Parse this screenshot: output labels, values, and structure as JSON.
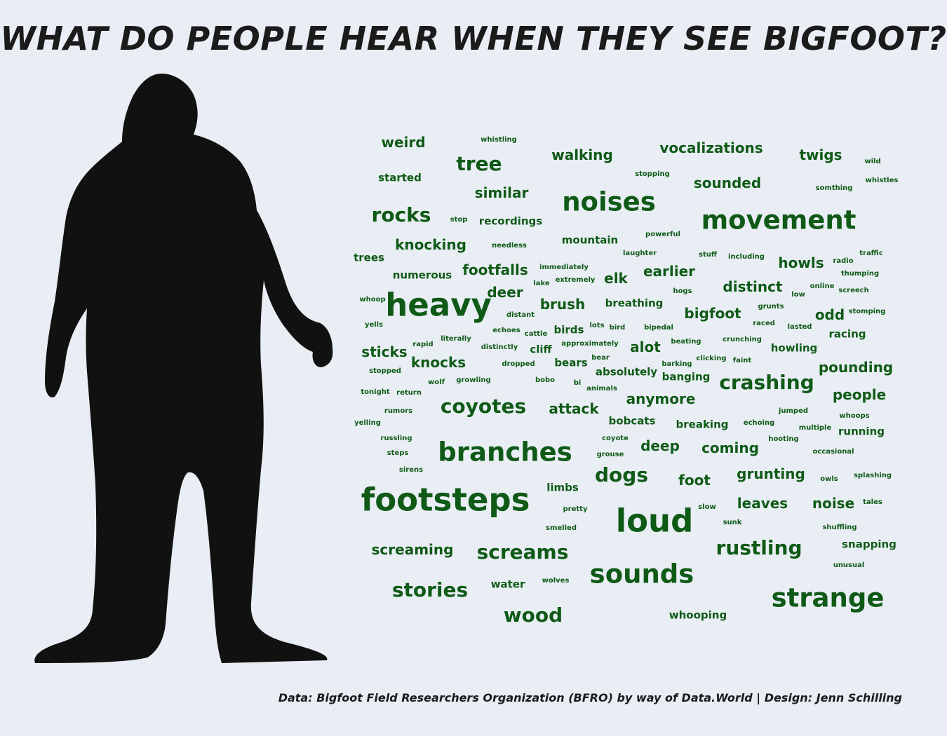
{
  "title": "WHAT DO PEOPLE HEAR WHEN THEY SEE BIGFOOT?",
  "caption": "Data: Bigfoot Field Researchers Organization (BFRO) by way of Data.World | Design: Jenn Schilling",
  "colors": {
    "background": "#e9eef4",
    "word": "#0f5a16",
    "silhouette": "#111111",
    "title": "#1b1b1b"
  },
  "silhouette": {
    "icon": "bigfoot-silhouette-icon"
  },
  "words": [
    {
      "text": "weird",
      "weight": 3
    },
    {
      "text": "whistling",
      "weight": 1
    },
    {
      "text": "walking",
      "weight": 3
    },
    {
      "text": "vocalizations",
      "weight": 3
    },
    {
      "text": "twigs",
      "weight": 3
    },
    {
      "text": "wild",
      "weight": 1
    },
    {
      "text": "tree",
      "weight": 4
    },
    {
      "text": "started",
      "weight": 2
    },
    {
      "text": "stopping",
      "weight": 1
    },
    {
      "text": "sounded",
      "weight": 3
    },
    {
      "text": "whistles",
      "weight": 1
    },
    {
      "text": "somthing",
      "weight": 1
    },
    {
      "text": "similar",
      "weight": 3
    },
    {
      "text": "noises",
      "weight": 5
    },
    {
      "text": "rocks",
      "weight": 4
    },
    {
      "text": "stop",
      "weight": 1
    },
    {
      "text": "recordings",
      "weight": 2
    },
    {
      "text": "movement",
      "weight": 5
    },
    {
      "text": "powerful",
      "weight": 1
    },
    {
      "text": "knocking",
      "weight": 3
    },
    {
      "text": "needless",
      "weight": 1
    },
    {
      "text": "mountain",
      "weight": 2
    },
    {
      "text": "laughter",
      "weight": 1
    },
    {
      "text": "stuff",
      "weight": 1
    },
    {
      "text": "including",
      "weight": 1
    },
    {
      "text": "howls",
      "weight": 3
    },
    {
      "text": "radio",
      "weight": 1
    },
    {
      "text": "traffic",
      "weight": 1
    },
    {
      "text": "trees",
      "weight": 2
    },
    {
      "text": "numerous",
      "weight": 2
    },
    {
      "text": "footfalls",
      "weight": 3
    },
    {
      "text": "immediately",
      "weight": 1
    },
    {
      "text": "elk",
      "weight": 3
    },
    {
      "text": "earlier",
      "weight": 3
    },
    {
      "text": "thumping",
      "weight": 1
    },
    {
      "text": "lake",
      "weight": 1
    },
    {
      "text": "extremely",
      "weight": 1
    },
    {
      "text": "distinct",
      "weight": 3
    },
    {
      "text": "online",
      "weight": 1
    },
    {
      "text": "hogs",
      "weight": 1
    },
    {
      "text": "low",
      "weight": 1
    },
    {
      "text": "screech",
      "weight": 1
    },
    {
      "text": "deer",
      "weight": 3
    },
    {
      "text": "whoop",
      "weight": 1
    },
    {
      "text": "heavy",
      "weight": 6
    },
    {
      "text": "brush",
      "weight": 3
    },
    {
      "text": "breathing",
      "weight": 2
    },
    {
      "text": "bigfoot",
      "weight": 3
    },
    {
      "text": "grunts",
      "weight": 1
    },
    {
      "text": "odd",
      "weight": 3
    },
    {
      "text": "stomping",
      "weight": 1
    },
    {
      "text": "distant",
      "weight": 1
    },
    {
      "text": "yells",
      "weight": 1
    },
    {
      "text": "echoes",
      "weight": 1
    },
    {
      "text": "cattle",
      "weight": 1
    },
    {
      "text": "birds",
      "weight": 2
    },
    {
      "text": "lots",
      "weight": 1
    },
    {
      "text": "bird",
      "weight": 1
    },
    {
      "text": "bipedal",
      "weight": 1
    },
    {
      "text": "raced",
      "weight": 1
    },
    {
      "text": "lasted",
      "weight": 1
    },
    {
      "text": "racing",
      "weight": 2
    },
    {
      "text": "literally",
      "weight": 1
    },
    {
      "text": "approximately",
      "weight": 1
    },
    {
      "text": "beating",
      "weight": 1
    },
    {
      "text": "crunching",
      "weight": 1
    },
    {
      "text": "sticks",
      "weight": 3
    },
    {
      "text": "rapid",
      "weight": 1
    },
    {
      "text": "distinctly",
      "weight": 1
    },
    {
      "text": "cliff",
      "weight": 2
    },
    {
      "text": "alot",
      "weight": 3
    },
    {
      "text": "howling",
      "weight": 2
    },
    {
      "text": "bear",
      "weight": 1
    },
    {
      "text": "clicking",
      "weight": 1
    },
    {
      "text": "faint",
      "weight": 1
    },
    {
      "text": "knocks",
      "weight": 3
    },
    {
      "text": "dropped",
      "weight": 1
    },
    {
      "text": "bears",
      "weight": 2
    },
    {
      "text": "barking",
      "weight": 1
    },
    {
      "text": "pounding",
      "weight": 3
    },
    {
      "text": "stopped",
      "weight": 1
    },
    {
      "text": "absolutely",
      "weight": 2
    },
    {
      "text": "banging",
      "weight": 2
    },
    {
      "text": "growling",
      "weight": 1
    },
    {
      "text": "wolf",
      "weight": 1
    },
    {
      "text": "bobo",
      "weight": 1
    },
    {
      "text": "bi",
      "weight": 1
    },
    {
      "text": "crashing",
      "weight": 4
    },
    {
      "text": "animals",
      "weight": 1
    },
    {
      "text": "tonight",
      "weight": 1
    },
    {
      "text": "return",
      "weight": 1
    },
    {
      "text": "people",
      "weight": 3
    },
    {
      "text": "coyotes",
      "weight": 4
    },
    {
      "text": "anymore",
      "weight": 3
    },
    {
      "text": "rumors",
      "weight": 1
    },
    {
      "text": "attack",
      "weight": 3
    },
    {
      "text": "jumped",
      "weight": 1
    },
    {
      "text": "whoops",
      "weight": 1
    },
    {
      "text": "yelling",
      "weight": 1
    },
    {
      "text": "bobcats",
      "weight": 2
    },
    {
      "text": "breaking",
      "weight": 2
    },
    {
      "text": "echoing",
      "weight": 1
    },
    {
      "text": "multiple",
      "weight": 1
    },
    {
      "text": "running",
      "weight": 2
    },
    {
      "text": "russling",
      "weight": 1
    },
    {
      "text": "coyote",
      "weight": 1
    },
    {
      "text": "hooting",
      "weight": 1
    },
    {
      "text": "steps",
      "weight": 1
    },
    {
      "text": "branches",
      "weight": 5
    },
    {
      "text": "deep",
      "weight": 3
    },
    {
      "text": "coming",
      "weight": 3
    },
    {
      "text": "grouse",
      "weight": 1
    },
    {
      "text": "occasional",
      "weight": 1
    },
    {
      "text": "sirens",
      "weight": 1
    },
    {
      "text": "dogs",
      "weight": 4
    },
    {
      "text": "foot",
      "weight": 3
    },
    {
      "text": "grunting",
      "weight": 3
    },
    {
      "text": "owls",
      "weight": 1
    },
    {
      "text": "splashing",
      "weight": 1
    },
    {
      "text": "limbs",
      "weight": 2
    },
    {
      "text": "footsteps",
      "weight": 6
    },
    {
      "text": "pretty",
      "weight": 1
    },
    {
      "text": "slow",
      "weight": 1
    },
    {
      "text": "leaves",
      "weight": 3
    },
    {
      "text": "noise",
      "weight": 3
    },
    {
      "text": "tales",
      "weight": 1
    },
    {
      "text": "loud",
      "weight": 6
    },
    {
      "text": "smelled",
      "weight": 1
    },
    {
      "text": "sunk",
      "weight": 1
    },
    {
      "text": "shuffling",
      "weight": 1
    },
    {
      "text": "screaming",
      "weight": 3
    },
    {
      "text": "screams",
      "weight": 4
    },
    {
      "text": "rustling",
      "weight": 4
    },
    {
      "text": "snapping",
      "weight": 2
    },
    {
      "text": "unusual",
      "weight": 1
    },
    {
      "text": "sounds",
      "weight": 5
    },
    {
      "text": "stories",
      "weight": 4
    },
    {
      "text": "water",
      "weight": 2
    },
    {
      "text": "wolves",
      "weight": 1
    },
    {
      "text": "strange",
      "weight": 5
    },
    {
      "text": "wood",
      "weight": 4
    },
    {
      "text": "whooping",
      "weight": 2
    }
  ]
}
